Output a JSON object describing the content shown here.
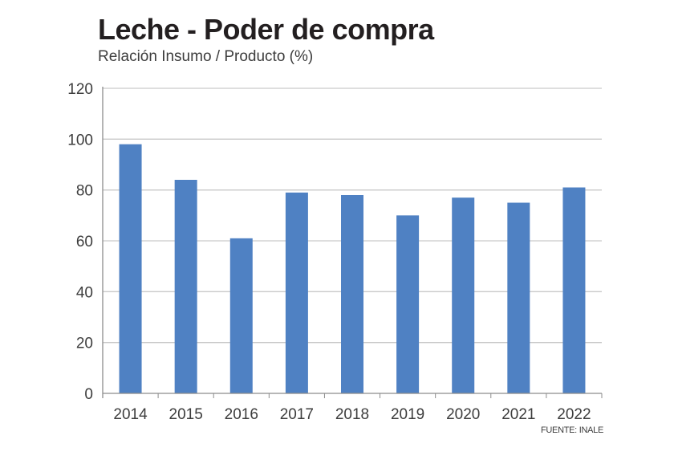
{
  "header": {
    "title": "Leche - Poder de compra",
    "subtitle": "Relación Insumo / Producto (%)"
  },
  "footer": {
    "source": "FUENTE: INALE"
  },
  "colors": {
    "bar": "#4f81c3",
    "grid": "#c9c9c9",
    "axis": "#8c8c8c"
  },
  "chart_data": {
    "type": "bar",
    "title": "Leche - Poder de compra",
    "subtitle": "Relación Insumo / Producto (%)",
    "xlabel": "",
    "ylabel": "",
    "categories": [
      "2014",
      "2015",
      "2016",
      "2017",
      "2018",
      "2019",
      "2020",
      "2021",
      "2022"
    ],
    "values": [
      98,
      84,
      61,
      79,
      78,
      70,
      77,
      75,
      81
    ],
    "ylim": [
      0,
      120
    ],
    "yticks": [
      0,
      20,
      40,
      60,
      80,
      100,
      120
    ],
    "grid": true,
    "legend": "none"
  }
}
